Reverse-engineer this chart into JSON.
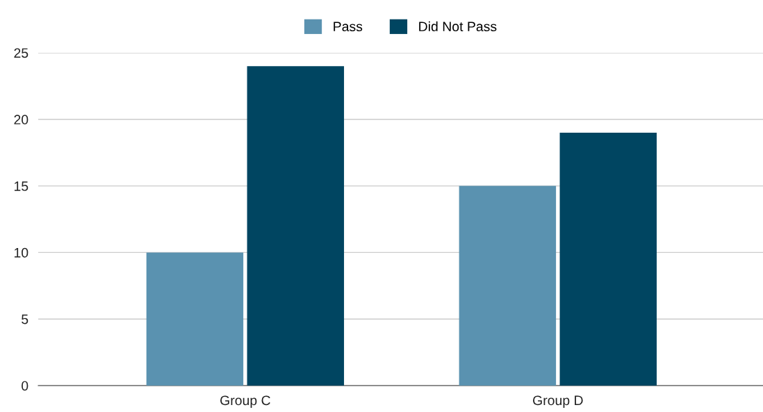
{
  "chart_data": {
    "type": "bar",
    "categories": [
      "Group C",
      "Group D"
    ],
    "series": [
      {
        "name": "Pass",
        "color": "#5a92b0",
        "values": [
          10,
          15
        ]
      },
      {
        "name": "Did Not Pass",
        "color": "#004561",
        "values": [
          24,
          19
        ]
      }
    ],
    "ylim": [
      0,
      25
    ],
    "yticks": [
      0,
      5,
      10,
      15,
      20,
      25
    ],
    "grid": "y",
    "legend": "top"
  }
}
